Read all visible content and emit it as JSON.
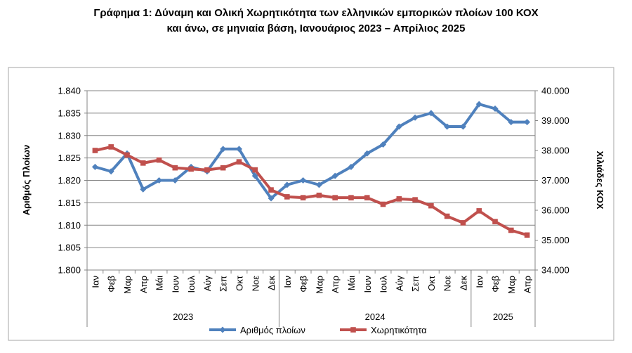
{
  "header": {
    "title_line1": "Γράφημα 1: Δύναμη και Ολική Χωρητικότητα των ελληνικών εμπορικών πλοίων 100 ΚΟΧ",
    "title_line2": "και άνω, σε μηνιαία βάση, Ιανουάριος 2023 – Απρίλιος 2025"
  },
  "chart_data": {
    "type": "line",
    "categories": [
      "Ιαν",
      "Φεβ",
      "Μαρ",
      "Απρ",
      "Μάι",
      "Ιουν",
      "Ιουλ",
      "Αύγ",
      "Σεπ",
      "Οκτ",
      "Νοε",
      "Δεκ",
      "Ιαν",
      "Φεβ",
      "Μαρ",
      "Απρ",
      "Μάι",
      "Ιουν",
      "Ιουλ",
      "Αύγ",
      "Σεπ",
      "Οκτ",
      "Νοε",
      "Δεκ",
      "Ιαν",
      "Φεβ",
      "Μαρ",
      "Απρ"
    ],
    "years": [
      {
        "label": "2023",
        "start": 0,
        "end": 11
      },
      {
        "label": "2024",
        "start": 12,
        "end": 23
      },
      {
        "label": "2025",
        "start": 24,
        "end": 27
      }
    ],
    "ylabel_left": "Αριθμός Πλοίων",
    "ylabel_right": "Χιλιάδες ΚΟΧ",
    "ylim_left": [
      1800,
      1840
    ],
    "ylim_right": [
      34000,
      40000
    ],
    "yticks_left": [
      "1.800",
      "1.805",
      "1.810",
      "1.815",
      "1.820",
      "1.825",
      "1.830",
      "1.835",
      "1.840"
    ],
    "yticks_right": [
      "34.000",
      "35.000",
      "36.000",
      "37.000",
      "38.000",
      "39.000",
      "40.000"
    ],
    "series": [
      {
        "name": "Αριθμός πλοίων",
        "axis": "left",
        "color": "#4f81bd",
        "marker": "diamond",
        "values": [
          1823,
          1822,
          1826,
          1818,
          1820,
          1820,
          1823,
          1822,
          1827,
          1827,
          1821,
          1816,
          1819,
          1820,
          1819,
          1821,
          1823,
          1826,
          1828,
          1832,
          1834,
          1835,
          1832,
          1832,
          1837,
          1836,
          1833,
          1833
        ]
      },
      {
        "name": "Χωρητικότητα",
        "axis": "right",
        "color": "#c0504d",
        "marker": "square",
        "values": [
          38000,
          38120,
          37850,
          37580,
          37680,
          37420,
          37380,
          37350,
          37420,
          37620,
          37350,
          36680,
          36450,
          36420,
          36500,
          36420,
          36420,
          36420,
          36200,
          36380,
          36350,
          36150,
          35800,
          35580,
          35980,
          35620,
          35330,
          35170
        ]
      }
    ],
    "legend_position": "bottom",
    "grid": true
  }
}
